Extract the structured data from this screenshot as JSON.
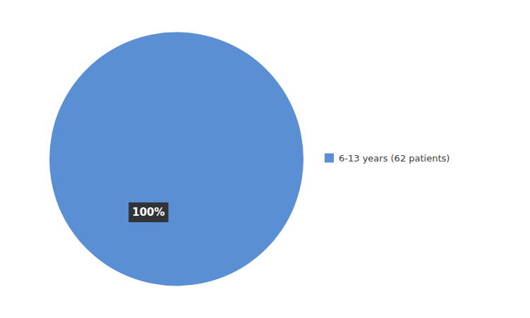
{
  "chart_data": {
    "type": "pie",
    "categories": [
      "6-13 years (62 patients)"
    ],
    "values": [
      100
    ],
    "value_labels": [
      "100%"
    ],
    "colors": [
      "#5B8FD4"
    ],
    "data_labels": true,
    "legend": "right"
  }
}
